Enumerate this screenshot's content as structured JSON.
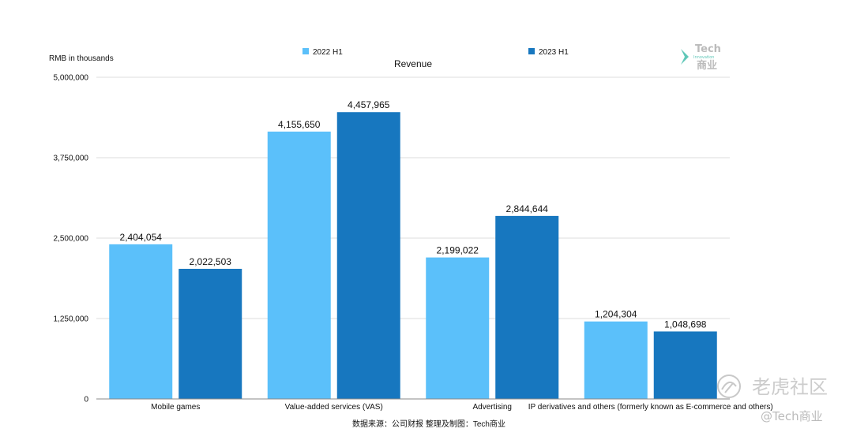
{
  "chart_data": {
    "type": "bar",
    "title": "Revenue",
    "ylabel": "RMB in thousands",
    "xlabel": "",
    "categories": [
      "Mobile games",
      "Value-added services (VAS)",
      "Advertising",
      "IP derivatives and others (formerly known as E-commerce and others)"
    ],
    "series": [
      {
        "name": "2022 H1",
        "color": "#5bc0fa",
        "values": [
          2404054,
          4155650,
          2199022,
          1204304
        ],
        "labels": [
          "2,404,054",
          "4,155,650",
          "2,199,022",
          "1,204,304"
        ]
      },
      {
        "name": "2023 H1",
        "color": "#1777bf",
        "values": [
          2022503,
          4457965,
          2844644,
          1048698
        ],
        "labels": [
          "2,022,503",
          "4,457,965",
          "2,844,644",
          "1,048,698"
        ]
      }
    ],
    "ylim": [
      0,
      5000000
    ],
    "yticks": [
      0,
      1250000,
      2500000,
      3750000,
      5000000
    ],
    "ytick_labels": [
      "0",
      "1,250,000",
      "2,500,000",
      "3,750,000",
      "5,000,000"
    ],
    "grid": true,
    "legend_position": "top"
  },
  "source_note": "数据来源：公司财报 整理及制图：Tech商业",
  "logo": {
    "line1": "Tech",
    "line2": "Innovation",
    "line3": "商业",
    "color": "#5fc7b8"
  },
  "watermark": {
    "main": "老虎社区",
    "sub": "@Tech商业"
  }
}
